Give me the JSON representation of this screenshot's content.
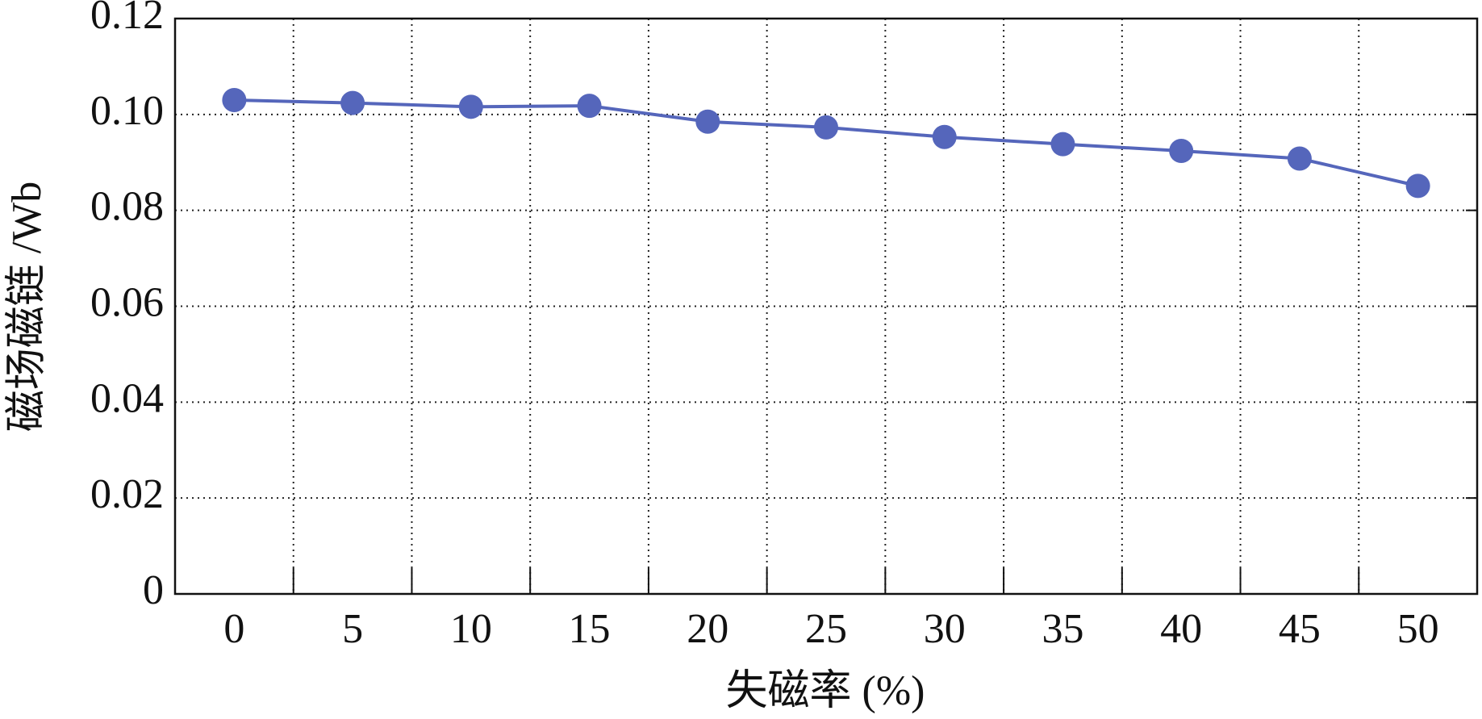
{
  "chart_data": {
    "type": "line",
    "x_label": "失磁率 (%)",
    "y_label": "磁场磁链 /Wb",
    "categories": [
      "0",
      "5",
      "10",
      "15",
      "20",
      "25",
      "30",
      "35",
      "40",
      "45",
      "50"
    ],
    "series": [
      {
        "name": "磁场磁链",
        "color": "#5566bb",
        "values": [
          0.103,
          0.1024,
          0.1016,
          0.1018,
          0.0985,
          0.0973,
          0.0953,
          0.0938,
          0.0924,
          0.0908,
          0.0851
        ]
      }
    ],
    "ylim": [
      0,
      0.12
    ],
    "yticks": [
      0,
      {
        "value": 0.02,
        "label": "0.02"
      },
      {
        "value": 0.04,
        "label": "0.04"
      },
      {
        "value": 0.06,
        "label": "0.06"
      },
      {
        "value": 0.08,
        "label": "0.08"
      },
      {
        "value": 0.1,
        "label": "0.10"
      },
      {
        "value": 0.12,
        "label": "0.12"
      }
    ],
    "grid": true
  }
}
